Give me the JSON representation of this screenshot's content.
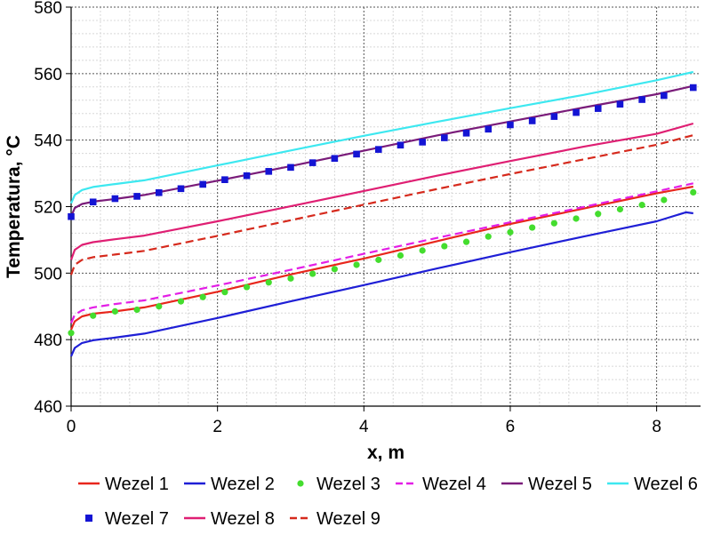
{
  "chart_data": {
    "type": "line",
    "xlabel": "x, m",
    "ylabel": "Temperatura,  °C",
    "xlim": [
      0,
      8.6
    ],
    "ylim": [
      460,
      580
    ],
    "xticks": [
      0,
      2,
      4,
      6,
      8
    ],
    "yticks": [
      460,
      480,
      500,
      520,
      540,
      560,
      580
    ],
    "xtick_labels": [
      "0",
      "2",
      "4",
      "6",
      "8"
    ],
    "ytick_labels": [
      "460",
      "480",
      "500",
      "520",
      "540",
      "560",
      "580"
    ],
    "grid": true,
    "legend_position": "bottom",
    "series": [
      {
        "name": "Wezel 1",
        "color": "#e8261c",
        "style": "solid",
        "marker": "none",
        "x": [
          0,
          0.05,
          0.15,
          0.3,
          0.6,
          1.0,
          2.0,
          3.0,
          4.0,
          5.0,
          6.0,
          7.0,
          8.0,
          8.5
        ],
        "y": [
          483,
          485.5,
          487,
          487.8,
          488.5,
          489.7,
          494.4,
          499.6,
          504.4,
          509.6,
          514.8,
          519.4,
          524,
          526
        ]
      },
      {
        "name": "Wezel 2",
        "color": "#1f1fd6",
        "style": "solid",
        "marker": "none",
        "x": [
          0,
          0.05,
          0.15,
          0.3,
          0.6,
          1.0,
          2.0,
          3.0,
          4.0,
          5.0,
          6.0,
          7.0,
          8.0,
          8.4,
          8.5
        ],
        "y": [
          475,
          477.5,
          479,
          479.8,
          480.6,
          481.8,
          486.5,
          491.5,
          496.4,
          501.4,
          506.3,
          511,
          515.6,
          518.3,
          518
        ]
      },
      {
        "name": "Wezel 3",
        "color": "#44dd2e",
        "style": "none",
        "marker": "circle",
        "x": [
          0,
          0.3,
          0.6,
          0.9,
          1.2,
          1.5,
          1.8,
          2.1,
          2.4,
          2.7,
          3.0,
          3.3,
          3.6,
          3.9,
          4.2,
          4.5,
          4.8,
          5.1,
          5.4,
          5.7,
          6.0,
          6.3,
          6.6,
          6.9,
          7.2,
          7.5,
          7.8,
          8.1,
          8.5
        ],
        "y": [
          482,
          487.2,
          488.5,
          489,
          490,
          491.5,
          492.8,
          494.3,
          495.8,
          497.2,
          498.4,
          499.8,
          501.2,
          502.5,
          504,
          505.3,
          506.8,
          508.1,
          509.4,
          511,
          512.3,
          513.7,
          515,
          516.4,
          517.8,
          519.2,
          520.5,
          522,
          524.3
        ]
      },
      {
        "name": "Wezel 4",
        "color": "#e31ee6",
        "style": "dashed",
        "marker": "none",
        "x": [
          0,
          0.05,
          0.15,
          0.3,
          0.6,
          1.0,
          2.0,
          3.0,
          4.0,
          5.0,
          6.0,
          7.0,
          8.0,
          8.5
        ],
        "y": [
          485,
          487.5,
          488.8,
          489.7,
          490.7,
          491.8,
          496.3,
          501,
          505.8,
          510.6,
          515.3,
          519.9,
          524.6,
          527
        ]
      },
      {
        "name": "Wezel 5",
        "color": "#7a1c7a",
        "style": "solid",
        "marker": "none",
        "x": [
          0,
          0.05,
          0.15,
          0.3,
          0.6,
          1.0,
          2.0,
          3.0,
          4.0,
          5.0,
          6.0,
          7.0,
          8.0,
          8.5
        ],
        "y": [
          517,
          519.6,
          520.8,
          521.5,
          522.3,
          523.5,
          527.8,
          532.2,
          536.8,
          541.4,
          545.6,
          549.8,
          553.8,
          556.3
        ]
      },
      {
        "name": "Wezel 6",
        "color": "#3de8f0",
        "style": "solid",
        "marker": "none",
        "x": [
          0,
          0.05,
          0.15,
          0.3,
          0.6,
          1.0,
          2.0,
          3.0,
          4.0,
          5.0,
          6.0,
          7.0,
          8.0,
          8.5
        ],
        "y": [
          521,
          523.5,
          525,
          525.9,
          526.8,
          527.9,
          532.4,
          536.9,
          541.3,
          545.5,
          549.6,
          553.6,
          558,
          560.5
        ]
      },
      {
        "name": "Wezel 7",
        "color": "#1414d4",
        "style": "none",
        "marker": "square",
        "x": [
          0,
          0.3,
          0.6,
          0.9,
          1.2,
          1.5,
          1.8,
          2.1,
          2.4,
          2.7,
          3.0,
          3.3,
          3.6,
          3.9,
          4.2,
          4.5,
          4.8,
          5.1,
          5.4,
          5.7,
          6.0,
          6.3,
          6.6,
          6.9,
          7.2,
          7.5,
          7.8,
          8.1,
          8.5
        ],
        "y": [
          517,
          521.4,
          522.4,
          523.1,
          524.2,
          525.4,
          526.7,
          528.1,
          529.3,
          530.6,
          531.8,
          533.2,
          534.5,
          535.8,
          537.2,
          538.5,
          539.4,
          540.7,
          542.1,
          543.3,
          544.6,
          545.8,
          547.1,
          548.3,
          549.5,
          550.8,
          552.2,
          553.4,
          555.8
        ]
      },
      {
        "name": "Wezel 8",
        "color": "#df1f73",
        "style": "solid",
        "marker": "none",
        "x": [
          0,
          0.05,
          0.15,
          0.3,
          0.6,
          1.0,
          2.0,
          3.0,
          4.0,
          5.0,
          6.0,
          7.0,
          8.0,
          8.5
        ],
        "y": [
          504,
          507,
          508.5,
          509.3,
          510.2,
          511.3,
          515.6,
          520.1,
          524.7,
          529.3,
          533.7,
          538,
          541.9,
          545
        ]
      },
      {
        "name": "Wezel 9",
        "color": "#d62a1d",
        "style": "dashed",
        "marker": "none",
        "x": [
          0,
          0.05,
          0.15,
          0.3,
          0.6,
          1.0,
          2.0,
          3.0,
          4.0,
          5.0,
          6.0,
          7.0,
          8.0,
          8.5
        ],
        "y": [
          499.5,
          502.5,
          504,
          504.8,
          505.6,
          506.7,
          511.2,
          515.9,
          520.6,
          525.3,
          529.8,
          534.2,
          538.6,
          541.5
        ]
      }
    ]
  }
}
